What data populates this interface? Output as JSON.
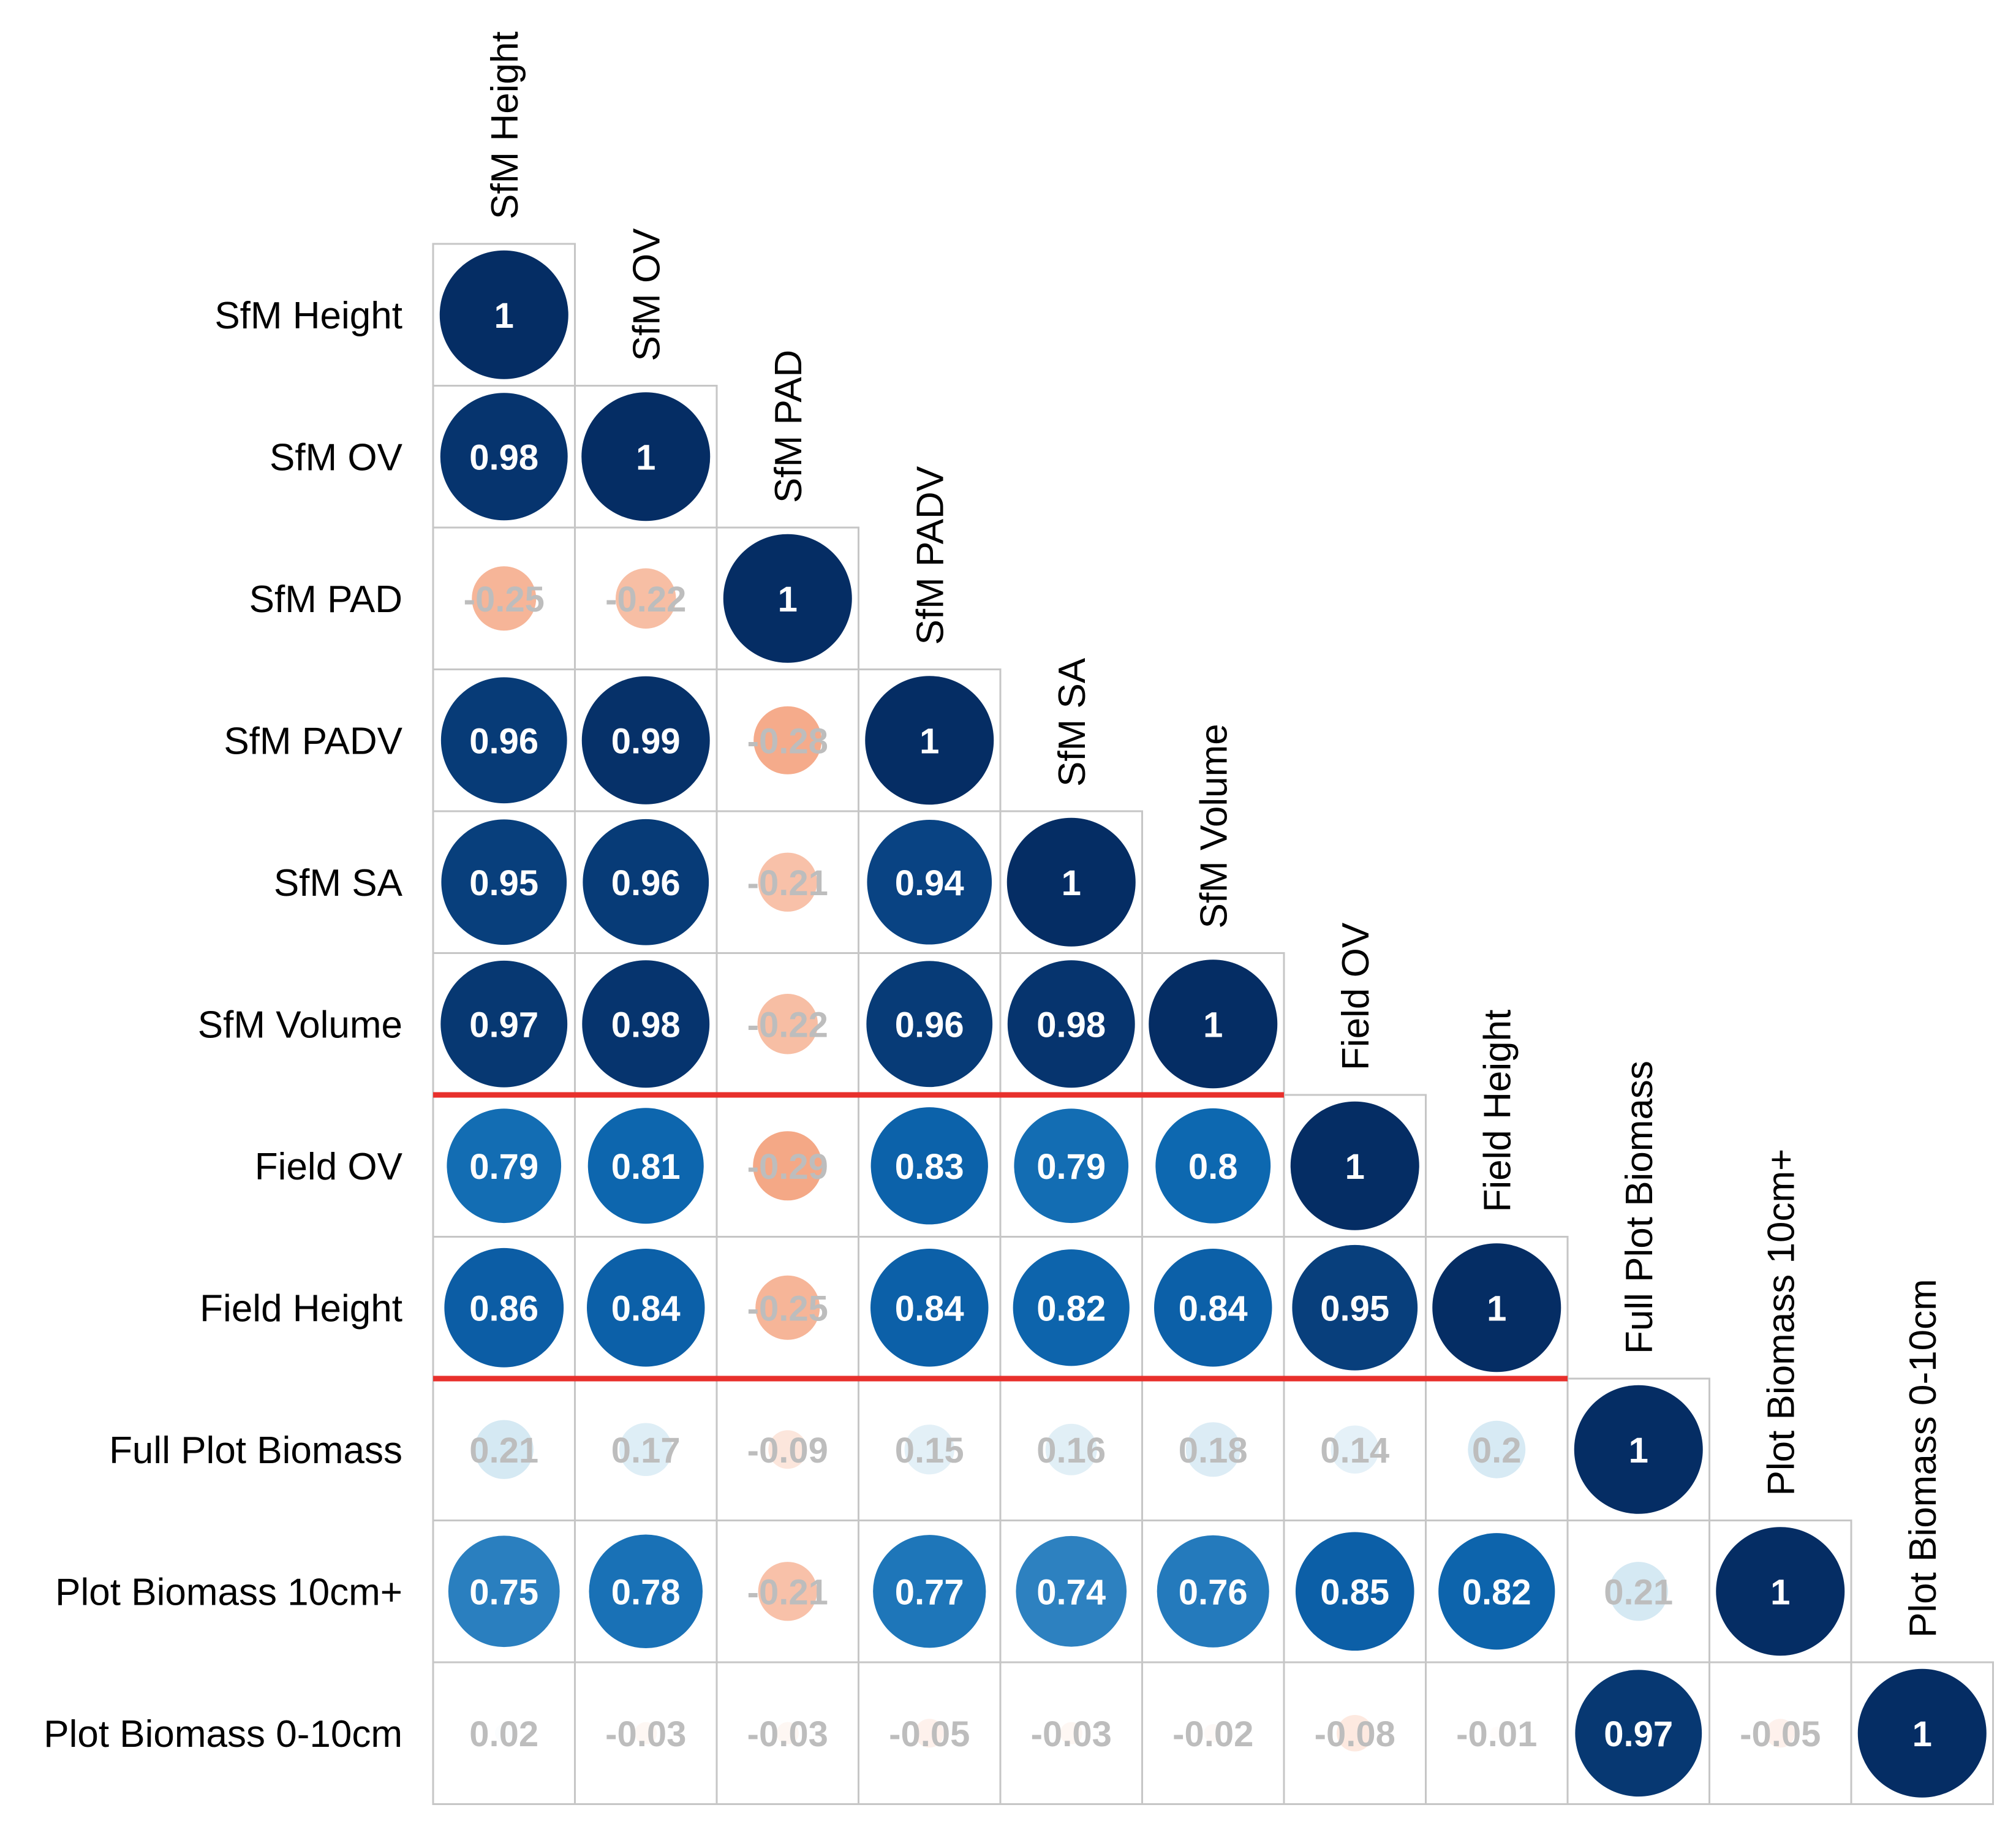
{
  "chart_data": {
    "type": "heatmap",
    "subtype": "correlation-matrix-lower-triangle-circles",
    "variables": [
      "SfM Height",
      "SfM OV",
      "SfM PAD",
      "SfM PADV",
      "SfM SA",
      "SfM Volume",
      "Field OV",
      "Field Height",
      "Full Plot Biomass",
      "Plot Biomass 10cm+",
      "Plot Biomass 0-10cm"
    ],
    "values": [
      [
        1
      ],
      [
        0.98,
        1
      ],
      [
        -0.25,
        -0.22,
        1
      ],
      [
        0.96,
        0.99,
        -0.28,
        1
      ],
      [
        0.95,
        0.96,
        -0.21,
        0.94,
        1
      ],
      [
        0.97,
        0.98,
        -0.22,
        0.96,
        0.98,
        1
      ],
      [
        0.79,
        0.81,
        -0.29,
        0.83,
        0.79,
        0.8,
        1
      ],
      [
        0.86,
        0.84,
        -0.25,
        0.84,
        0.82,
        0.84,
        0.95,
        1
      ],
      [
        0.21,
        0.17,
        -0.09,
        0.15,
        0.16,
        0.18,
        0.14,
        0.2,
        1
      ],
      [
        0.75,
        0.78,
        -0.21,
        0.77,
        0.74,
        0.76,
        0.85,
        0.82,
        0.21,
        1
      ],
      [
        0.02,
        -0.03,
        -0.03,
        -0.05,
        -0.03,
        -0.02,
        -0.08,
        -0.01,
        0.97,
        -0.05,
        1
      ]
    ],
    "value_range": [
      -1,
      1
    ],
    "group_separators_after_rows": [
      5,
      7
    ],
    "colors": {
      "positive_strong": "#052d64",
      "positive_weak": "#d6eaf3",
      "negative_weak": "#fce3d8",
      "negative_strong": "#f4a582",
      "grid": "#c6c6c6",
      "separator": "#e8302c"
    }
  }
}
